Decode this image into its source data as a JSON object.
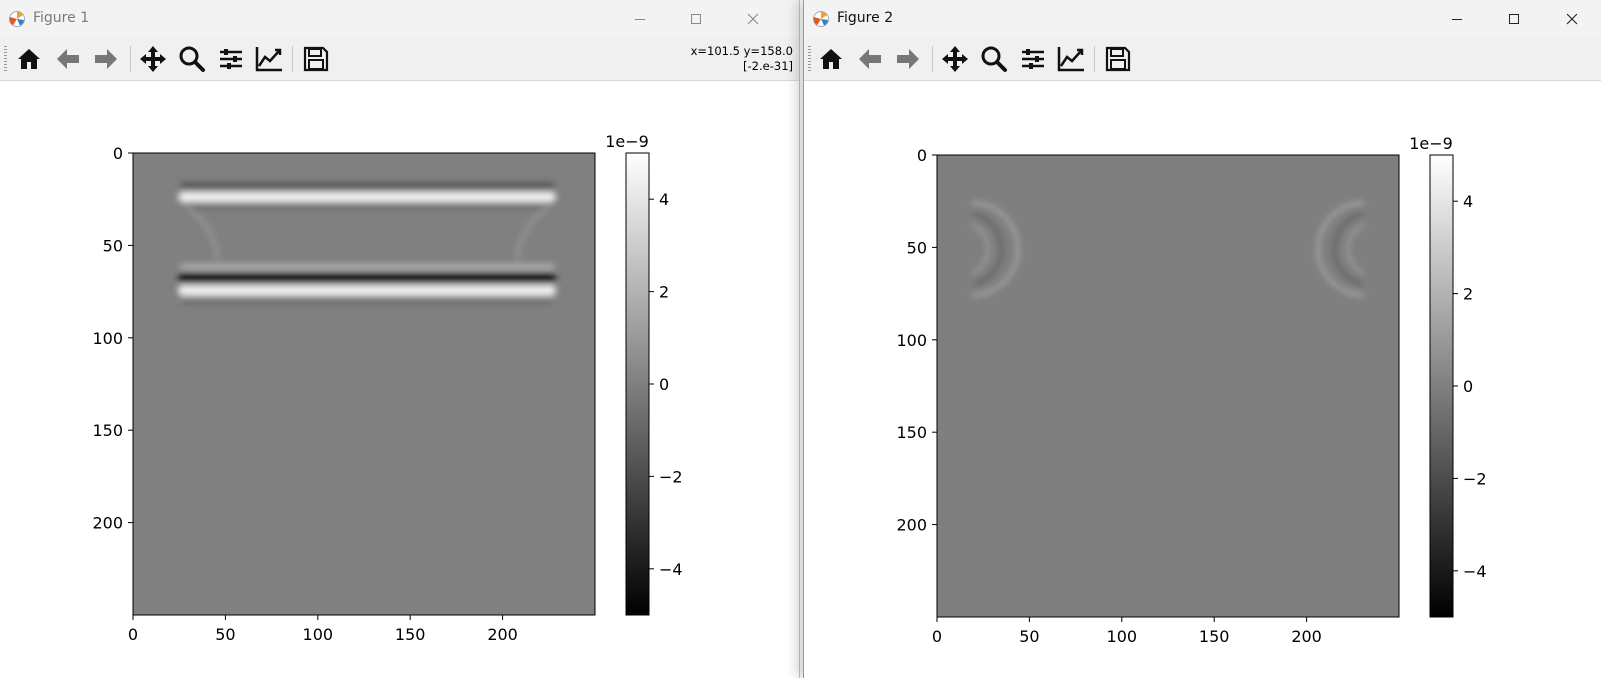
{
  "windows": [
    {
      "title": "Figure 1",
      "coords_line1": "x=101.5 y=158.0",
      "coords_line2": "[-2.e-31]",
      "toolbar": [
        "home-icon",
        "back-arrow-icon",
        "forward-arrow-icon",
        "pan-icon",
        "zoom-icon",
        "configure-subplots-icon",
        "edit-axis-icon",
        "save-icon"
      ],
      "image": {
        "x_ticks": [
          "0",
          "50",
          "100",
          "150",
          "200"
        ],
        "y_ticks": [
          "0",
          "50",
          "100",
          "150",
          "200"
        ],
        "colorbar_ticks": [
          "4",
          "2",
          "0",
          "−2",
          "−4"
        ],
        "colorbar_offset": "1e−9",
        "colorbar_range": [
          -5,
          5
        ],
        "colormap": "gray",
        "content": "Two horizontal wave bands between y≈20 and y≈90 across x≈25–230"
      }
    },
    {
      "title": "Figure 2",
      "toolbar": [
        "home-icon",
        "back-arrow-icon",
        "forward-arrow-icon",
        "pan-icon",
        "zoom-icon",
        "configure-subplots-icon",
        "edit-axis-icon",
        "save-icon"
      ],
      "image": {
        "x_ticks": [
          "0",
          "50",
          "100",
          "150",
          "200"
        ],
        "y_ticks": [
          "0",
          "50",
          "100",
          "150",
          "200"
        ],
        "colorbar_ticks": [
          "4",
          "2",
          "0",
          "−2",
          "−4"
        ],
        "colorbar_offset": "1e−9",
        "colorbar_range": [
          -5,
          5
        ],
        "colormap": "gray",
        "content": "Two faint semicircular wavefronts near x≈20 and x≈230 at y≈50"
      }
    }
  ],
  "colors": {
    "titlebar_bg": "#f3f3f3",
    "toolbar_bg": "#f0f0f0",
    "image_mid_gray": "#808080"
  }
}
